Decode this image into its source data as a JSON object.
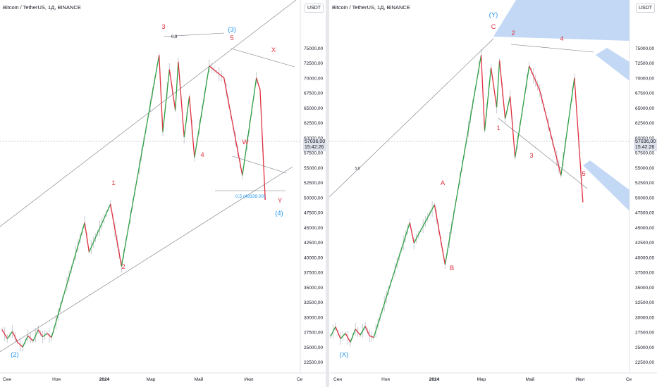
{
  "colors": {
    "impulse_up": "#2ea043",
    "impulse_down": "#e03040",
    "wave_label_red": "#e0303f",
    "wave_label_blue": "#2196f3",
    "trendline": "#787b86",
    "channel_fill": "#90b8ec",
    "price_axis_text": "#131722",
    "candle_ghost": "#c8cbd2"
  },
  "chart_data": [
    {
      "type": "line",
      "title": "Bitcoin / TetherUS, 1Д, BINANCE",
      "currency_button": "USDT",
      "last_price": "57036,00",
      "countdown": "15:42:26",
      "x_ticks": [
        "Сен",
        "Ноя",
        "2024",
        "Мар",
        "Май",
        "Июл",
        "Се"
      ],
      "y_ticks": [
        "75000,00",
        "72500,00",
        "70000,00",
        "67500,00",
        "65000,00",
        "62500,00",
        "60000,00",
        "57500,00",
        "55000,00",
        "52500,00",
        "50000,00",
        "47500,00",
        "45000,00",
        "42500,00",
        "40000,00",
        "37500,00",
        "35000,00",
        "32500,00",
        "30000,00",
        "27500,00",
        "25000,00",
        "22500,00"
      ],
      "ylim": [
        21500,
        79500
      ],
      "xlim": [
        "2023-08-14",
        "2024-09-12"
      ],
      "series": [
        {
          "points": [
            [
              "2023-08-14",
              27900
            ],
            [
              "2023-08-21",
              26400
            ],
            [
              "2023-08-28",
              27600
            ],
            [
              "2023-09-04",
              25800
            ],
            [
              "2023-09-11",
              25000
            ],
            [
              "2023-09-18",
              26900
            ],
            [
              "2023-09-25",
              26000
            ],
            [
              "2023-10-02",
              27900
            ],
            [
              "2023-10-08",
              26700
            ],
            [
              "2023-10-14",
              27300
            ],
            [
              "2023-10-20",
              26600
            ],
            [
              "2023-12-04",
              45800
            ],
            [
              "2023-12-10",
              40900
            ],
            [
              "2024-01-08",
              48900
            ],
            [
              "2024-01-23",
              38500
            ],
            [
              "2024-03-14",
              73800
            ],
            [
              "2024-03-19",
              61000
            ],
            [
              "2024-03-28",
              71400
            ],
            [
              "2024-04-05",
              64600
            ],
            [
              "2024-04-09",
              72700
            ],
            [
              "2024-04-17",
              60100
            ],
            [
              "2024-04-24",
              66900
            ],
            [
              "2024-05-01",
              56700
            ],
            [
              "2024-05-21",
              72000
            ],
            [
              "2024-06-10",
              70000
            ],
            [
              "2024-07-05",
              53700
            ],
            [
              "2024-07-24",
              70000
            ],
            [
              "2024-07-29",
              68000
            ],
            [
              "2024-08-05",
              49600
            ]
          ]
        }
      ],
      "wave_labels": [
        {
          "text": "(2)",
          "color": "blue"
        },
        {
          "text": "1",
          "color": "red"
        },
        {
          "text": "2",
          "color": "red"
        },
        {
          "text": "3",
          "color": "red"
        },
        {
          "text": "4",
          "color": "red"
        },
        {
          "text": "5",
          "color": "red"
        },
        {
          "text": "(3)",
          "color": "blue"
        },
        {
          "text": "W",
          "color": "red"
        },
        {
          "text": "X",
          "color": "red"
        },
        {
          "text": "Y",
          "color": "red"
        },
        {
          "text": "(4)",
          "color": "blue"
        }
      ],
      "annotations": [
        "0,5 (49339,00)",
        "0,9"
      ]
    },
    {
      "type": "line",
      "title": "Bitcoin / TetherUS, 1Д, BINANCE",
      "currency_button": "USDT",
      "last_price": "57036,00",
      "countdown": "15:42:26",
      "x_ticks": [
        "Сен",
        "Ноя",
        "2024",
        "Мар",
        "Май",
        "Июл",
        "Се"
      ],
      "y_ticks": [
        "75000,00",
        "72500,00",
        "70000,00",
        "67500,00",
        "65000,00",
        "62500,00",
        "60000,00",
        "57500,00",
        "55000,00",
        "52500,00",
        "50000,00",
        "47500,00",
        "45000,00",
        "42500,00",
        "40000,00",
        "37500,00",
        "35000,00",
        "32500,00",
        "30000,00",
        "27500,00",
        "25000,00",
        "22500,00"
      ],
      "ylim": [
        21500,
        79500
      ],
      "xlim": [
        "2023-08-14",
        "2024-09-12"
      ],
      "series": [
        {
          "points": [
            [
              "2023-08-14",
              26800
            ],
            [
              "2023-08-21",
              28400
            ],
            [
              "2023-08-28",
              26400
            ],
            [
              "2023-09-04",
              27300
            ],
            [
              "2023-09-11",
              25800
            ],
            [
              "2023-09-18",
              28000
            ],
            [
              "2023-09-25",
              27000
            ],
            [
              "2023-10-02",
              28500
            ],
            [
              "2023-10-08",
              26900
            ],
            [
              "2023-10-14",
              26600
            ],
            [
              "2023-12-04",
              45800
            ],
            [
              "2023-12-10",
              42400
            ],
            [
              "2024-01-08",
              48800
            ],
            [
              "2024-01-23",
              38800
            ],
            [
              "2024-03-14",
              73800
            ],
            [
              "2024-03-19",
              61200
            ],
            [
              "2024-03-28",
              71700
            ],
            [
              "2024-04-05",
              65100
            ],
            [
              "2024-04-09",
              72900
            ],
            [
              "2024-04-17",
              63200
            ],
            [
              "2024-04-24",
              66900
            ],
            [
              "2024-05-01",
              56700
            ],
            [
              "2024-05-21",
              72000
            ],
            [
              "2024-06-05",
              67900
            ],
            [
              "2024-07-05",
              53700
            ],
            [
              "2024-07-24",
              70000
            ],
            [
              "2024-08-05",
              49200
            ]
          ]
        }
      ],
      "wave_labels": [
        {
          "text": "(X)",
          "color": "blue"
        },
        {
          "text": "A",
          "color": "red"
        },
        {
          "text": "B",
          "color": "red"
        },
        {
          "text": "C",
          "color": "red"
        },
        {
          "text": "(Y)",
          "color": "blue"
        },
        {
          "text": "1",
          "color": "red"
        },
        {
          "text": "2",
          "color": "red"
        },
        {
          "text": "3",
          "color": "red"
        },
        {
          "text": "4",
          "color": "red"
        },
        {
          "text": "5",
          "color": "red"
        }
      ],
      "annotations": [
        "3,0"
      ]
    }
  ]
}
